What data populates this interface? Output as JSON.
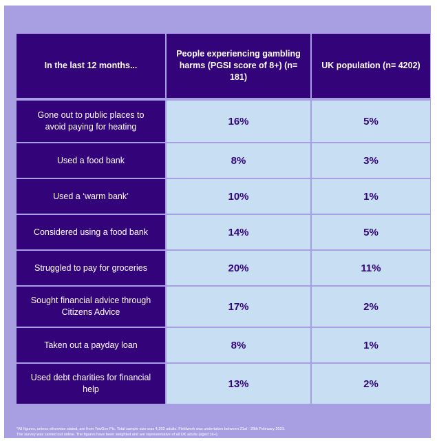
{
  "table": {
    "headers": [
      "In the last 12 months...",
      "People experiencing gambling harms (PGSI score of 8+) (n= 181)",
      "UK population (n= 4202)"
    ],
    "rows": [
      {
        "label": "Gone out to public places to avoid paying for heating",
        "harms": "16%",
        "uk": "5%"
      },
      {
        "label": "Used a food bank",
        "harms": "8%",
        "uk": "3%"
      },
      {
        "label": "Used a ‘warm bank’",
        "harms": "10%",
        "uk": "1%"
      },
      {
        "label": "Considered using a food bank",
        "harms": "14%",
        "uk": "5%"
      },
      {
        "label": "Struggled to pay for groceries",
        "harms": "20%",
        "uk": "11%"
      },
      {
        "label": "Sought financial advice through Citizens Advice",
        "harms": "17%",
        "uk": "2%"
      },
      {
        "label": "Taken out a payday loan",
        "harms": "8%",
        "uk": "1%"
      },
      {
        "label": "Used debt charities for financial help",
        "harms": "13%",
        "uk": "2%"
      }
    ]
  },
  "footnote": {
    "line1": "*All figures, unless otherwise stated, are from YouGov Plc. Total sample size was 4,202 adults. Fieldwork was undertaken between 21st - 28th February 2023.",
    "line2": "The survey was carried out online. The figures have been weighted and are representative of all UK adults (aged 16+)."
  },
  "colors": {
    "background": "#a89fe3",
    "header_fill": "#33037a",
    "value_fill": "#c7def3",
    "value_text": "#33037a"
  }
}
